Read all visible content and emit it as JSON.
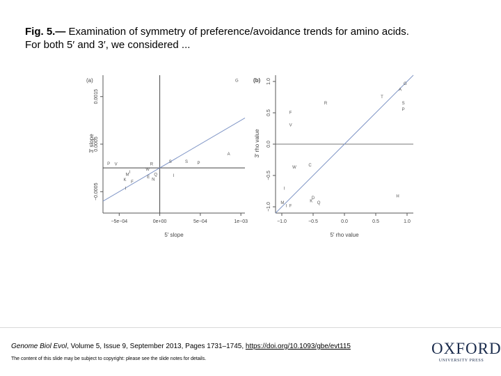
{
  "caption": {
    "lead": "Fig. 5.—",
    "text": " Examination of symmetry of preference/avoidance trends for amino acids. For both 5′ and 3′, we considered ..."
  },
  "chart_data": [
    {
      "panel": "(a)",
      "type": "scatter",
      "xlabel": "5′ slope",
      "ylabel": "3′ slope",
      "xlim": [
        -0.0007,
        0.00105
      ],
      "ylim": [
        -0.00095,
        0.00195
      ],
      "xticks": [
        -0.0005,
        0,
        0.0005,
        0.001
      ],
      "xtick_labels": [
        "−5e−04",
        "0e+00",
        "5e−04",
        "1e−03"
      ],
      "yticks": [
        -0.0005,
        0.0005,
        0.0015
      ],
      "ytick_labels": [
        "−0.0005",
        "0.0005",
        "0.0015"
      ],
      "reference_line": {
        "type": "identity"
      },
      "hline": 0,
      "vline": 0,
      "points": [
        {
          "label": "G",
          "x": 0.00095,
          "y": 0.00185
        },
        {
          "label": "A",
          "x": 0.00085,
          "y": 0.0003
        },
        {
          "label": "P",
          "x": -0.00063,
          "y": 0.0001
        },
        {
          "label": "V",
          "x": -0.00054,
          "y": 9e-05
        },
        {
          "label": "R",
          "x": -0.0001,
          "y": 9e-05
        },
        {
          "label": "S",
          "x": 0.00013,
          "y": 0.00014
        },
        {
          "label": "S",
          "x": 0.00033,
          "y": 0.00014
        },
        {
          "label": "P",
          "x": 0.00048,
          "y": 0.00011
        },
        {
          "label": "W",
          "x": -0.00015,
          "y": -2e-05
        },
        {
          "label": "I",
          "x": -0.00037,
          "y": -8e-05
        },
        {
          "label": "M",
          "x": -0.0004,
          "y": -0.00013
        },
        {
          "label": "Q",
          "x": -5e-05,
          "y": -0.00013
        },
        {
          "label": "I",
          "x": 0.00017,
          "y": -0.00015
        },
        {
          "label": "K",
          "x": -0.00043,
          "y": -0.00024
        },
        {
          "label": "E",
          "x": -0.00014,
          "y": -0.00018
        },
        {
          "label": "N",
          "x": -8e-05,
          "y": -0.00023
        },
        {
          "label": "F",
          "x": -0.00034,
          "y": -0.00028
        },
        {
          "label": "I",
          "x": -0.00042,
          "y": -0.00042
        }
      ]
    },
    {
      "panel": "(b)",
      "type": "scatter",
      "xlabel": "5′ rho value",
      "ylabel": "3′ rho value",
      "xlim": [
        -1.1,
        1.1
      ],
      "ylim": [
        -1.1,
        1.1
      ],
      "xticks": [
        -1.0,
        -0.5,
        0.0,
        0.5,
        1.0
      ],
      "xtick_labels": [
        "−1.0",
        "−0.5",
        "0.0",
        "0.5",
        "1.0"
      ],
      "yticks": [
        -1.0,
        -0.5,
        0.0,
        0.5,
        1.0
      ],
      "ytick_labels": [
        "−1.0",
        "−0.5",
        "0.0",
        "0.5",
        "1.0"
      ],
      "reference_line": {
        "type": "identity"
      },
      "hline": 0,
      "vline": 0,
      "points": [
        {
          "label": "G",
          "x": 0.97,
          "y": 0.97
        },
        {
          "label": "A",
          "x": 0.89,
          "y": 0.88
        },
        {
          "label": "T",
          "x": 0.6,
          "y": 0.76
        },
        {
          "label": "R",
          "x": -0.3,
          "y": 0.66
        },
        {
          "label": "S",
          "x": 0.94,
          "y": 0.66
        },
        {
          "label": "P",
          "x": 0.94,
          "y": 0.56
        },
        {
          "label": "F",
          "x": -0.86,
          "y": 0.51
        },
        {
          "label": "V",
          "x": -0.86,
          "y": 0.31
        },
        {
          "label": "W",
          "x": -0.8,
          "y": -0.36
        },
        {
          "label": "C",
          "x": -0.55,
          "y": -0.33
        },
        {
          "label": "I",
          "x": -0.96,
          "y": -0.7
        },
        {
          "label": "D",
          "x": -0.5,
          "y": -0.85
        },
        {
          "label": "K",
          "x": -0.53,
          "y": -0.9
        },
        {
          "label": "Q",
          "x": -0.41,
          "y": -0.93
        },
        {
          "label": "M",
          "x": -0.99,
          "y": -0.93
        },
        {
          "label": "I",
          "x": -0.93,
          "y": -0.98
        },
        {
          "label": "F",
          "x": -0.86,
          "y": -0.98
        },
        {
          "label": "H",
          "x": 0.85,
          "y": -0.82
        }
      ]
    }
  ],
  "footer": {
    "journal": "Genome Biol Evol",
    "citation": ", Volume 5, Issue 9, September 2013, Pages 1731–1745, ",
    "doi": "https://doi.org/10.1093/gbe/evt115",
    "notice": "The content of this slide may be subject to copyright: please see the slide notes for details.",
    "logo_main": "OXFORD",
    "logo_sub": "UNIVERSITY PRESS"
  },
  "colors": {
    "reference_line": "#7f95c6",
    "zero_lines": "#444444",
    "axes": "#555555",
    "points": "#555555",
    "logo": "#1a2b4c"
  }
}
